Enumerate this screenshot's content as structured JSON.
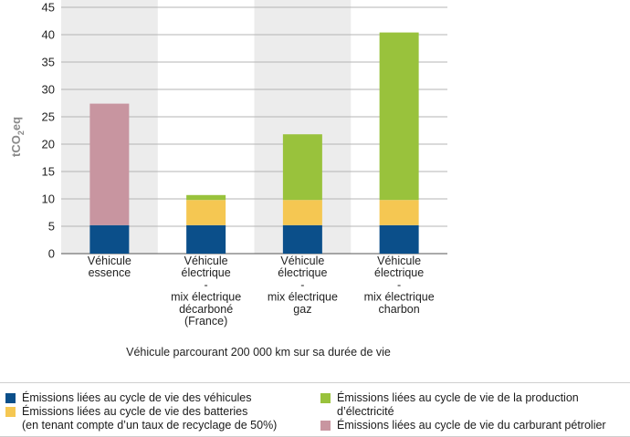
{
  "chart_data": {
    "type": "bar",
    "stacked": true,
    "ylabel": "tCO",
    "ylabel_sub": "2",
    "ylabel_suffix": "eq",
    "ylim": [
      0,
      45
    ],
    "yticks": [
      0,
      5,
      10,
      15,
      20,
      25,
      30,
      35,
      40,
      45
    ],
    "grid": true,
    "categories": [
      [
        "Véhicule",
        "essence"
      ],
      [
        "Véhicule",
        "électrique",
        "-",
        "mix électrique",
        "décarboné",
        "(France)"
      ],
      [
        "Véhicule",
        "électrique",
        "-",
        "mix électrique",
        "gaz"
      ],
      [
        "Véhicule",
        "électrique",
        "-",
        "mix électrique",
        "charbon"
      ]
    ],
    "series": [
      {
        "name": "Émissions liées au cycle de vie des véhicules",
        "color": "#0b4f8a",
        "values": [
          5.2,
          5.2,
          5.2,
          5.2
        ]
      },
      {
        "name": "Émissions liées au cycle de vie des batteries (en tenant compte d’un taux de recyclage de 50%)",
        "color": "#f5c752",
        "values": [
          0,
          4.6,
          4.6,
          4.6
        ]
      },
      {
        "name": "Émissions liées au cycle de vie de la production d’électricité",
        "color": "#99c23c",
        "values": [
          0,
          0.9,
          12.0,
          30.6
        ]
      },
      {
        "name": "Émissions liées au cycle de vie du carburant pétrolier",
        "color": "#c895a0",
        "values": [
          22.2,
          0,
          0,
          0
        ]
      }
    ],
    "annotation": "Véhicule parcourant 200 000 km sur sa durée de vie"
  },
  "legend": {
    "items": [
      {
        "lines": [
          "Émissions liées au cycle de vie des véhicules"
        ],
        "color": "#0b4f8a"
      },
      {
        "lines": [
          "Émissions liées au cycle de vie des batteries",
          "(en tenant compte d’un taux de recyclage de 50%)"
        ],
        "color": "#f5c752"
      },
      {
        "lines": [
          "Émissions liées au cycle de vie de la production",
          "d’électricité"
        ],
        "color": "#99c23c"
      },
      {
        "lines": [
          "Émissions liées au cycle de vie du carburant pétrolier"
        ],
        "color": "#c895a0"
      }
    ]
  },
  "colors": {
    "band": "#ececec",
    "grid": "#b5b5b5",
    "axis": "#555555"
  }
}
